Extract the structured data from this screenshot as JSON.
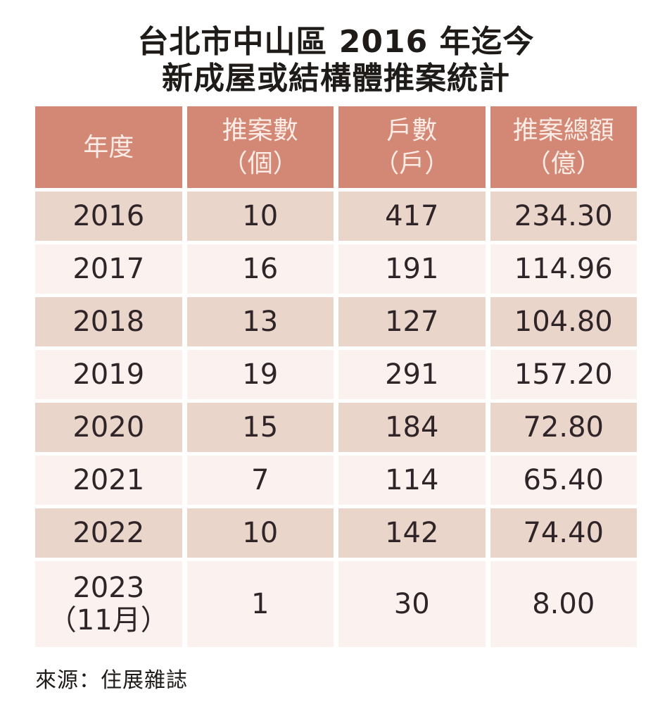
{
  "title": {
    "line1": "台北市中山區 2016 年迄今",
    "line2": "新成屋或結構體推案統計"
  },
  "table": {
    "headers": [
      "年度",
      "推案數\n（個）",
      "戶數\n（戶）",
      "推案總額\n（億）"
    ],
    "rows": [
      {
        "year": "2016",
        "cases": "10",
        "units": "417",
        "total": "234.30"
      },
      {
        "year": "2017",
        "cases": "16",
        "units": "191",
        "total": "114.96"
      },
      {
        "year": "2018",
        "cases": "13",
        "units": "127",
        "total": "104.80"
      },
      {
        "year": "2019",
        "cases": "19",
        "units": "291",
        "total": "157.20"
      },
      {
        "year": "2020",
        "cases": "15",
        "units": "184",
        "total": "72.80"
      },
      {
        "year": "2021",
        "cases": "7",
        "units": "114",
        "total": "65.40"
      },
      {
        "year": "2022",
        "cases": "10",
        "units": "142",
        "total": "74.40"
      },
      {
        "year": "2023\n（11月）",
        "cases": "1",
        "units": "30",
        "total": "8.00"
      }
    ]
  },
  "source_note": "來源：住展雜誌",
  "colors": {
    "header_bg": "#d28875",
    "header_text": "#fcece5",
    "row_dark_bg": "#e9d5ca",
    "row_light_bg": "#fbf1ee",
    "cell_text": "#2f2427",
    "title_text": "#1e1b19"
  },
  "chart_data": {
    "type": "table",
    "title": "台北市中山區 2016 年迄今新成屋或結構體推案統計",
    "columns": [
      "年度",
      "推案數（個）",
      "戶數（戶）",
      "推案總額（億）"
    ],
    "rows": [
      [
        "2016",
        10,
        417,
        234.3
      ],
      [
        "2017",
        16,
        191,
        114.96
      ],
      [
        "2018",
        13,
        127,
        104.8
      ],
      [
        "2019",
        19,
        291,
        157.2
      ],
      [
        "2020",
        15,
        184,
        72.8
      ],
      [
        "2021",
        7,
        114,
        65.4
      ],
      [
        "2022",
        10,
        142,
        74.4
      ],
      [
        "2023（11月）",
        1,
        30,
        8.0
      ]
    ],
    "source": "來源：住展雜誌",
    "layout": "alternating row shading, salmon header band, white gridline gaps"
  }
}
